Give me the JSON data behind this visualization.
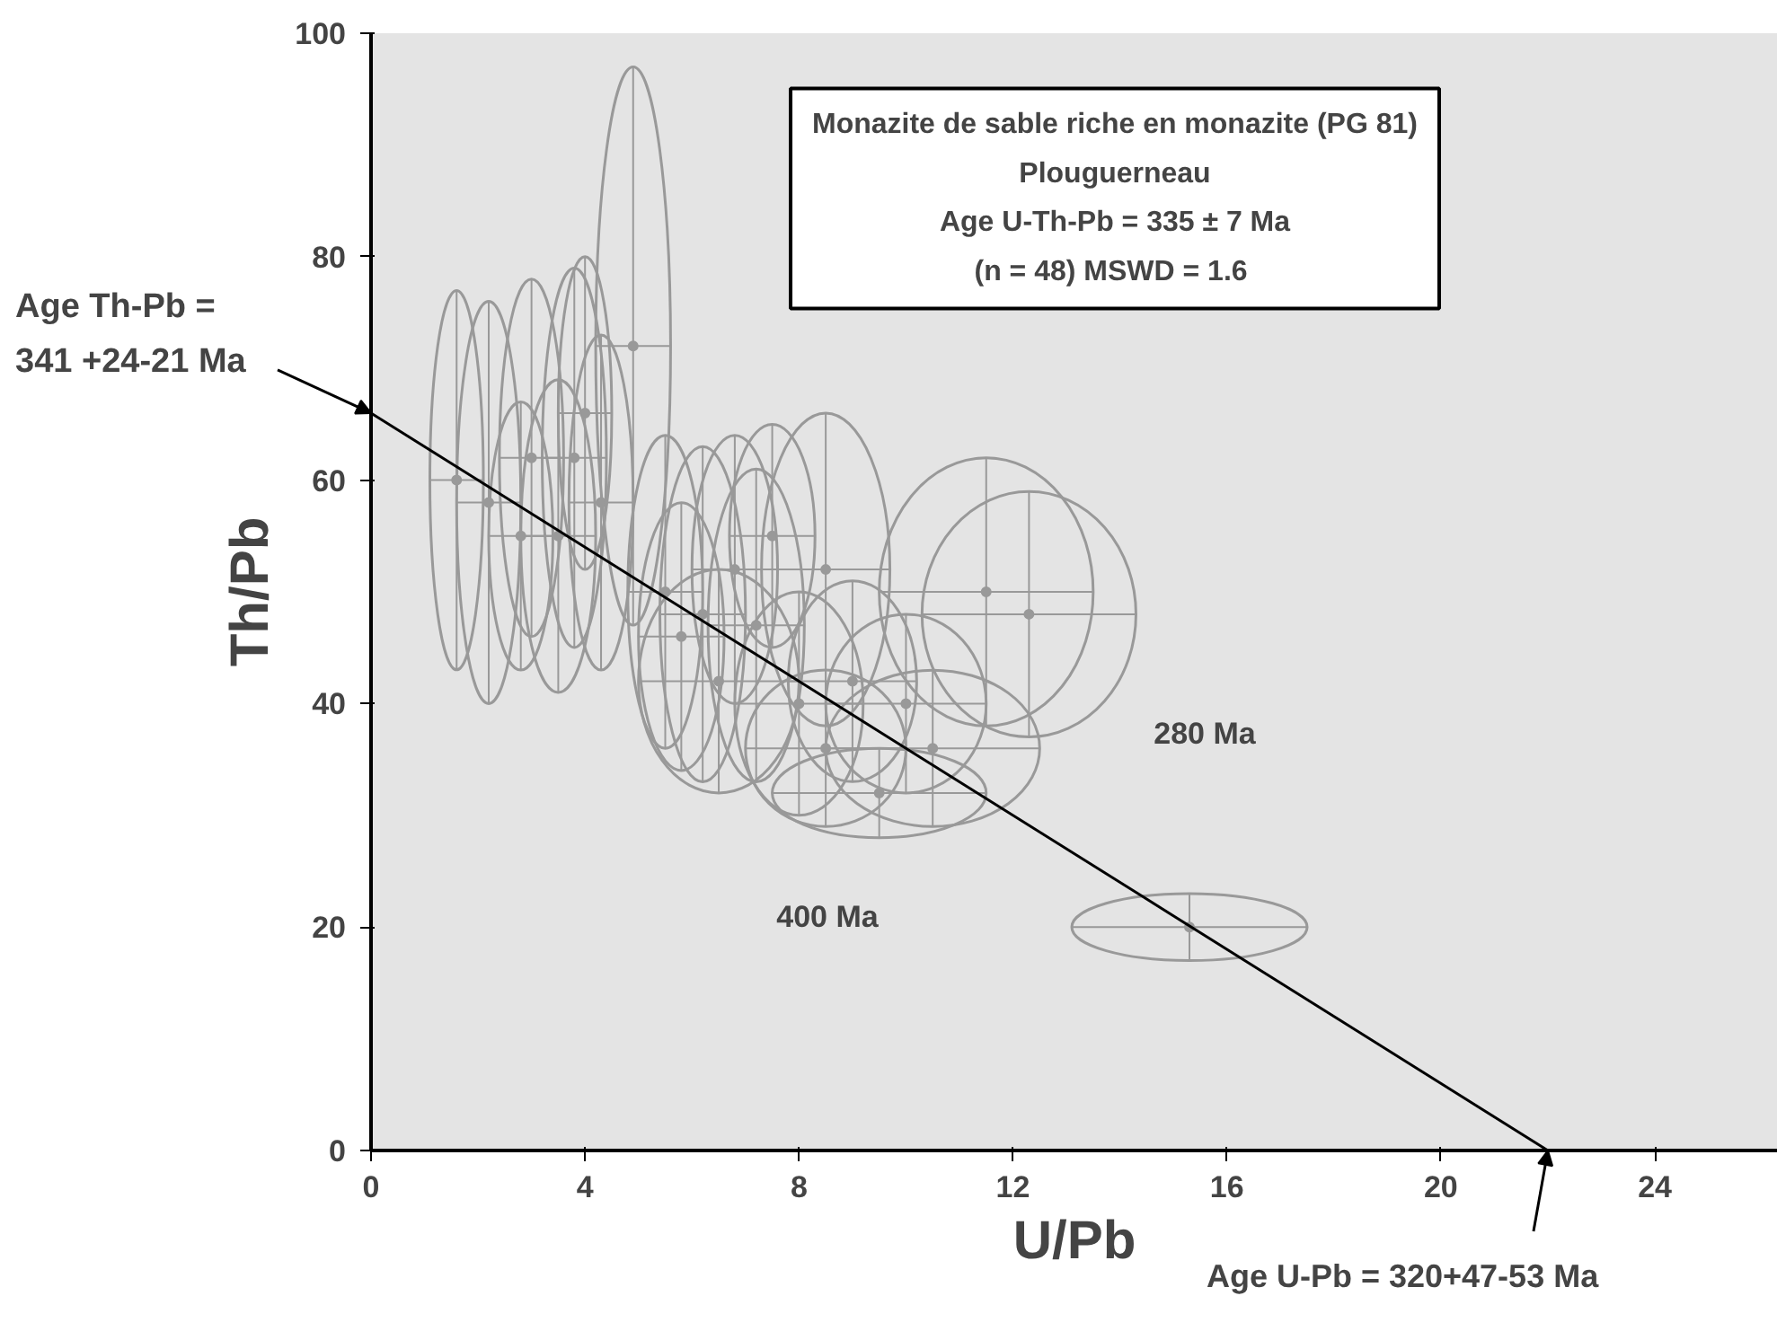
{
  "chart_data": {
    "type": "scatter",
    "xlabel": "U/Pb",
    "ylabel": "Th/Pb",
    "xlim": [
      0,
      26.3
    ],
    "ylim": [
      0,
      100
    ],
    "xticks": [
      0,
      4,
      8,
      12,
      16,
      20,
      24
    ],
    "yticks": [
      0,
      20,
      40,
      60,
      80,
      100
    ],
    "grid": false,
    "series": [
      {
        "color": "#999999",
        "marker": "circle",
        "x": [
          1.6,
          2.2,
          3.0,
          3.8,
          4.3,
          2.8,
          3.5,
          4.0,
          4.9,
          5.5,
          6.2,
          6.8,
          7.2,
          6.5,
          5.8,
          7.5,
          8.5,
          8.0,
          9.0,
          8.5,
          10.0,
          10.5,
          9.5,
          11.5,
          12.3,
          15.3
        ],
        "values": [
          60,
          58,
          62,
          62,
          58,
          55,
          55,
          66,
          72,
          50,
          48,
          52,
          47,
          42,
          46,
          55,
          52,
          40,
          42,
          36,
          40,
          36,
          32,
          50,
          48,
          20
        ],
        "xerrors": [
          0.5,
          0.6,
          0.6,
          0.6,
          0.6,
          0.6,
          0.7,
          0.5,
          0.7,
          0.7,
          0.8,
          0.8,
          0.9,
          1.5,
          0.8,
          0.8,
          1.2,
          1.2,
          1.2,
          1.5,
          1.5,
          2,
          2,
          2,
          2,
          2.2
        ],
        "errors": [
          17,
          18,
          16,
          17,
          15,
          12,
          14,
          14,
          25,
          14,
          15,
          12,
          14,
          10,
          12,
          10,
          14,
          10,
          9,
          7,
          8,
          7,
          4,
          12,
          11,
          3
        ]
      },
      {
        "type": "line",
        "color": "#000000",
        "x": [
          0,
          22
        ],
        "values": [
          66,
          0
        ]
      }
    ],
    "annotations": [
      "Monazite de sable riche en monazite (PG 81)",
      "Plouguerneau",
      "Age U-Th-Pb = 335 ± 7 Ma",
      "(n = 48)  MSWD = 1.6",
      {
        "text": "Age Th-Pb =\n341 +24-21 Ma",
        "x": 0,
        "y": 66
      },
      {
        "text": "Age U-Pb = 320+47-53 Ma",
        "x": 22,
        "y": 0
      },
      "400 Ma",
      "280 Ma"
    ]
  }
}
